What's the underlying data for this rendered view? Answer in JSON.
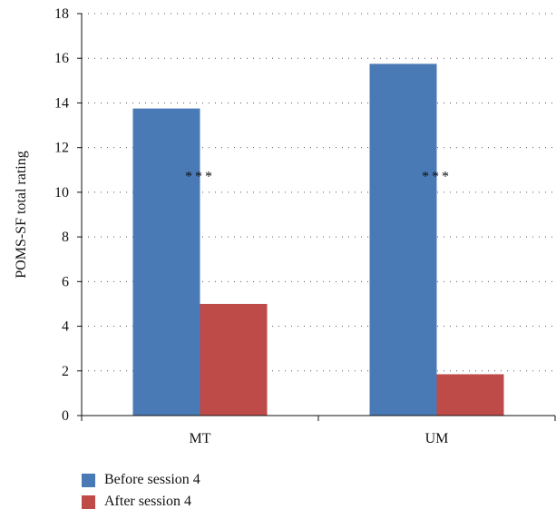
{
  "chart_data": {
    "type": "bar",
    "categories": [
      "MT",
      "UM"
    ],
    "series": [
      {
        "name": "Before session 4",
        "values": [
          13.75,
          15.75
        ],
        "color": "#4a7ab5"
      },
      {
        "name": "After session 4",
        "values": [
          5.0,
          1.85
        ],
        "color": "#be4b48"
      }
    ],
    "annotations": [
      "***",
      "***"
    ],
    "ylabel": "POMS-SF total rating",
    "ylim": [
      0,
      18
    ],
    "yticks": [
      0,
      2,
      4,
      6,
      8,
      10,
      12,
      14,
      16,
      18
    ],
    "grid": true,
    "legend_position": "bottom-left"
  }
}
